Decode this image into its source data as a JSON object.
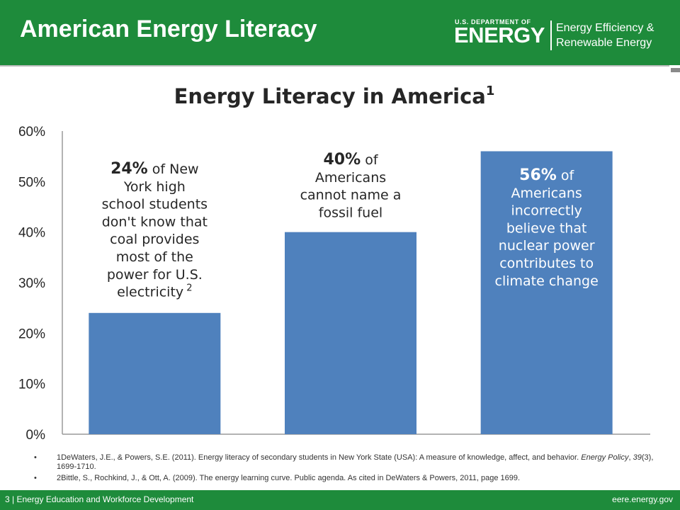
{
  "slide": {
    "title": "American Energy Literacy",
    "logo": {
      "dept": "U.S. DEPARTMENT OF",
      "energy": "ENERGY",
      "office_line1": "Energy Efficiency &",
      "office_line2": "Renewable Energy"
    }
  },
  "chart_data": {
    "type": "bar",
    "title": "Energy Literacy in America",
    "title_superscript": "1",
    "categories": [
      "",
      "",
      ""
    ],
    "values": [
      24,
      40,
      56
    ],
    "ylim": [
      0,
      60
    ],
    "yticks": [
      "0%",
      "10%",
      "20%",
      "30%",
      "40%",
      "50%",
      "60%"
    ],
    "ytick_values": [
      0,
      10,
      20,
      30,
      40,
      50,
      60
    ],
    "grid": false,
    "bar_color": "#4f81bd",
    "annotations": [
      {
        "number": "24%",
        "lines": [
          " of New",
          "York high",
          "school students",
          "don't know that",
          "coal provides",
          "most of the",
          "power for U.S.",
          "electricity"
        ],
        "superscript": "2",
        "color": "#262626"
      },
      {
        "number": "40%",
        "lines": [
          " of",
          "Americans",
          "cannot name a",
          "fossil fuel"
        ],
        "superscript": "",
        "color": "#262626"
      },
      {
        "number": "56%",
        "lines": [
          " of",
          "Americans",
          "incorrectly",
          "believe that",
          "nuclear power",
          "contributes to",
          "climate change"
        ],
        "superscript": "",
        "color": "#ffffff"
      }
    ]
  },
  "references": [
    {
      "bullet": "•",
      "p1": "1DeWaters, J.E., & Powers, S.E. (2011). Energy literacy of secondary students in New York State (USA): A measure of knowledge, affect, and behavior. ",
      "journal": "Energy Policy",
      "p2": ", ",
      "volume": "39",
      "p3": "(3), 1699-1710."
    },
    {
      "bullet": "•",
      "text": "2Bittle, S., Rochkind, J., & Ott, A. (2009). The energy learning curve. Public agenda. As cited in DeWaters & Powers, 2011, page 1699."
    }
  ],
  "footer": {
    "left": "3 | Energy Education and Workforce Development",
    "right": "eere.energy.gov"
  }
}
